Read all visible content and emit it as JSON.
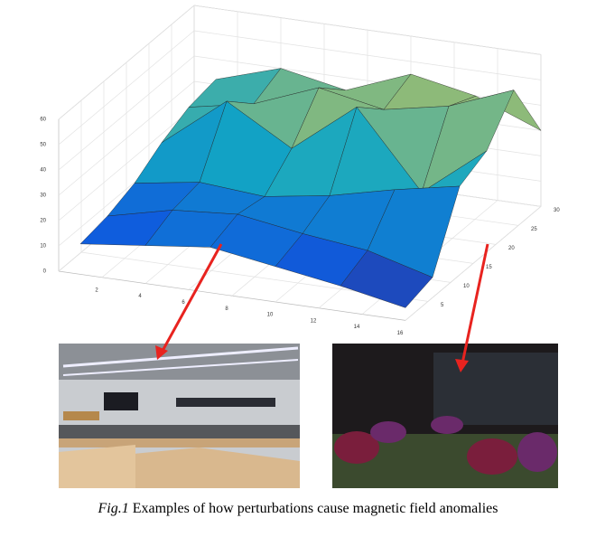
{
  "figure": {
    "plot": {
      "type": "surface",
      "x": [
        1,
        4,
        7,
        10,
        13,
        16
      ],
      "y": [
        0,
        6,
        12,
        18,
        24,
        30
      ],
      "z": [
        [
          12,
          15,
          18,
          14,
          10,
          5
        ],
        [
          14,
          20,
          22,
          18,
          15,
          8
        ],
        [
          18,
          22,
          20,
          24,
          30,
          35
        ],
        [
          25,
          45,
          30,
          50,
          20,
          40
        ],
        [
          30,
          35,
          45,
          40,
          45,
          55
        ],
        [
          32,
          40,
          35,
          45,
          40,
          30
        ]
      ],
      "xlim": [
        0,
        16
      ],
      "xticks": [
        2,
        4,
        6,
        8,
        10,
        12,
        14,
        16
      ],
      "ylim": [
        0,
        30
      ],
      "yticks": [
        5,
        10,
        15,
        20,
        25,
        30
      ],
      "zlim": [
        0,
        60
      ],
      "zticks": [
        0,
        10,
        20,
        30,
        40,
        50,
        60
      ],
      "grid": true
    },
    "caption": {
      "label": "Fig.1",
      "text": " Examples of how perturbations cause magnetic field anomalies"
    }
  }
}
